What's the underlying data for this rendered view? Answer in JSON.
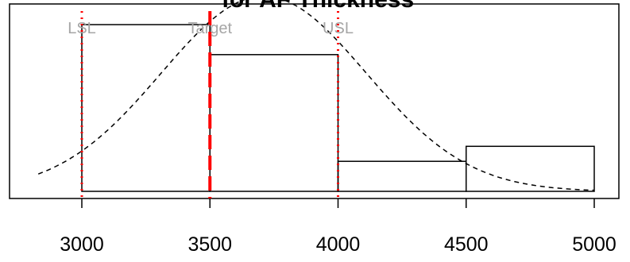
{
  "chart_data": {
    "type": "bar",
    "title": "for AF Thickness",
    "xlim": [
      2800,
      5100
    ],
    "ylim": [
      0,
      1.15
    ],
    "x_ticks": [
      "3000",
      "3500",
      "4000",
      "4500",
      "5000"
    ],
    "bins": [
      {
        "from": 3000,
        "to": 3500,
        "value": 1.0
      },
      {
        "from": 3500,
        "to": 4000,
        "value": 0.82
      },
      {
        "from": 4000,
        "to": 4500,
        "value": 0.18
      },
      {
        "from": 4500,
        "to": 5000,
        "value": 0.27
      }
    ],
    "normal_curve": {
      "mean": 3710,
      "sd": 400,
      "peak": 1.17,
      "x_from": 2830,
      "x_to": 5000
    },
    "spec_lines": [
      {
        "label": "LSL",
        "x": 3000,
        "style": "dotted"
      },
      {
        "label": "Target",
        "x": 3500,
        "style": "dashed"
      },
      {
        "label": "USL",
        "x": 4000,
        "style": "dotted"
      }
    ],
    "spec_line_color": "#ff0000",
    "spec_label_color": "#a6a6a6"
  }
}
